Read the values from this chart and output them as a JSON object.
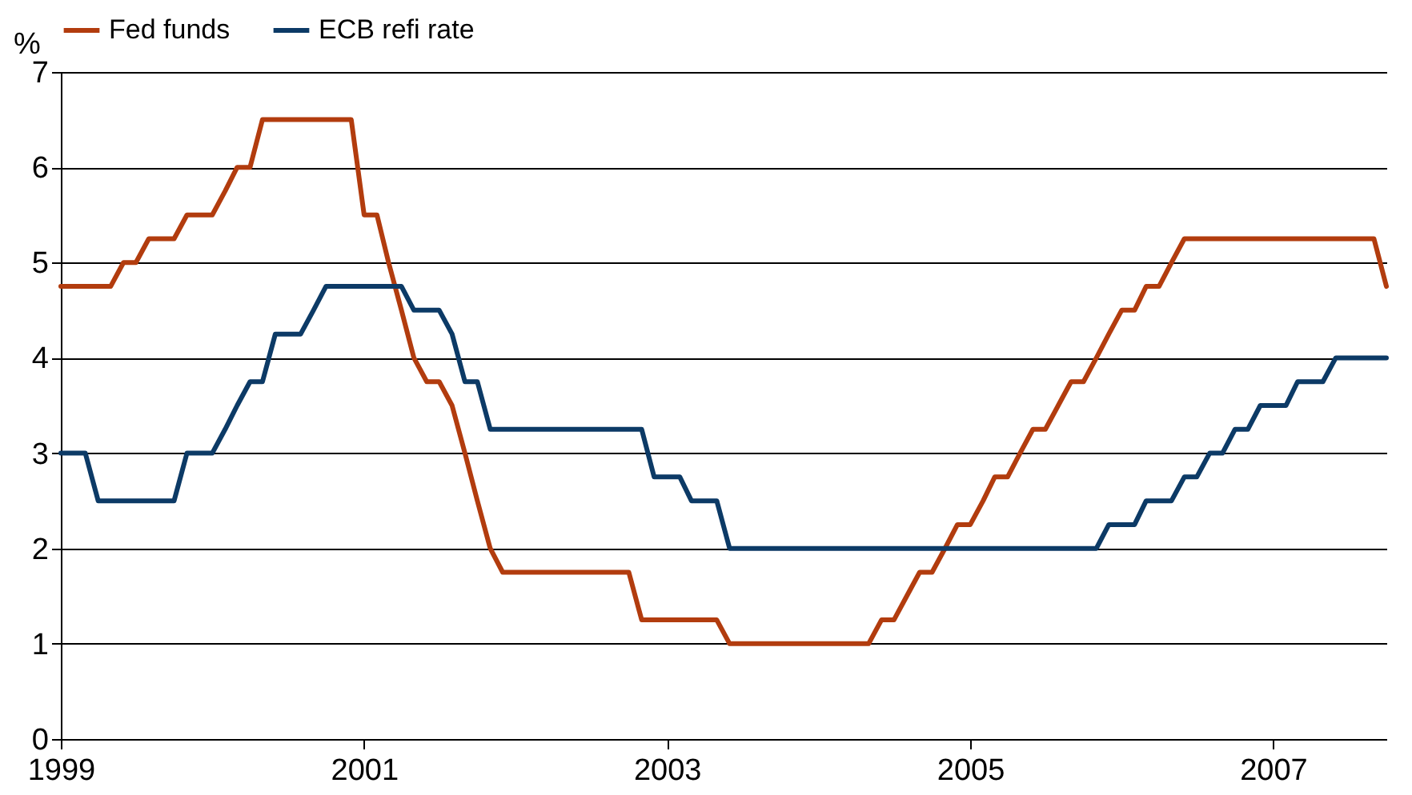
{
  "chart_data": {
    "type": "line",
    "ylabel": "%",
    "xlim": [
      "1999-01",
      "2007-10"
    ],
    "xticks": [
      "1999",
      "2001",
      "2003",
      "2005",
      "2007"
    ],
    "ylim": [
      0,
      7
    ],
    "yticks": [
      0,
      1,
      2,
      3,
      4,
      5,
      6,
      7
    ],
    "grid": "y",
    "legend": "top",
    "marker": "none",
    "line_style": "solid",
    "x": [
      "1999-01",
      "1999-02",
      "1999-03",
      "1999-04",
      "1999-05",
      "1999-06",
      "1999-07",
      "1999-08",
      "1999-09",
      "1999-10",
      "1999-11",
      "1999-12",
      "2000-01",
      "2000-02",
      "2000-03",
      "2000-04",
      "2000-05",
      "2000-06",
      "2000-07",
      "2000-08",
      "2000-09",
      "2000-10",
      "2000-11",
      "2000-12",
      "2001-01",
      "2001-02",
      "2001-03",
      "2001-04",
      "2001-05",
      "2001-06",
      "2001-07",
      "2001-08",
      "2001-09",
      "2001-10",
      "2001-11",
      "2001-12",
      "2002-01",
      "2002-02",
      "2002-03",
      "2002-04",
      "2002-05",
      "2002-06",
      "2002-07",
      "2002-08",
      "2002-09",
      "2002-10",
      "2002-11",
      "2002-12",
      "2003-01",
      "2003-02",
      "2003-03",
      "2003-04",
      "2003-05",
      "2003-06",
      "2003-07",
      "2003-08",
      "2003-09",
      "2003-10",
      "2003-11",
      "2003-12",
      "2004-01",
      "2004-02",
      "2004-03",
      "2004-04",
      "2004-05",
      "2004-06",
      "2004-07",
      "2004-08",
      "2004-09",
      "2004-10",
      "2004-11",
      "2004-12",
      "2005-01",
      "2005-02",
      "2005-03",
      "2005-04",
      "2005-05",
      "2005-06",
      "2005-07",
      "2005-08",
      "2005-09",
      "2005-10",
      "2005-11",
      "2005-12",
      "2006-01",
      "2006-02",
      "2006-03",
      "2006-04",
      "2006-05",
      "2006-06",
      "2006-07",
      "2006-08",
      "2006-09",
      "2006-10",
      "2006-11",
      "2006-12",
      "2007-01",
      "2007-02",
      "2007-03",
      "2007-04",
      "2007-05",
      "2007-06",
      "2007-07",
      "2007-08",
      "2007-09",
      "2007-10"
    ],
    "series": [
      {
        "name": "Fed funds",
        "color": "#b23c0e",
        "values": [
          4.75,
          4.75,
          4.75,
          4.75,
          4.75,
          5,
          5,
          5.25,
          5.25,
          5.25,
          5.5,
          5.5,
          5.5,
          5.75,
          6,
          6,
          6.5,
          6.5,
          6.5,
          6.5,
          6.5,
          6.5,
          6.5,
          6.5,
          5.5,
          5.5,
          5,
          4.5,
          4,
          3.75,
          3.75,
          3.5,
          3,
          2.5,
          2,
          1.75,
          1.75,
          1.75,
          1.75,
          1.75,
          1.75,
          1.75,
          1.75,
          1.75,
          1.75,
          1.75,
          1.25,
          1.25,
          1.25,
          1.25,
          1.25,
          1.25,
          1.25,
          1,
          1,
          1,
          1,
          1,
          1,
          1,
          1,
          1,
          1,
          1,
          1,
          1.25,
          1.25,
          1.5,
          1.75,
          1.75,
          2,
          2.25,
          2.25,
          2.5,
          2.75,
          2.75,
          3,
          3.25,
          3.25,
          3.5,
          3.75,
          3.75,
          4,
          4.25,
          4.5,
          4.5,
          4.75,
          4.75,
          5,
          5.25,
          5.25,
          5.25,
          5.25,
          5.25,
          5.25,
          5.25,
          5.25,
          5.25,
          5.25,
          5.25,
          5.25,
          5.25,
          5.25,
          5.25,
          5.25,
          4.75
        ]
      },
      {
        "name": "ECB refi rate",
        "color": "#0c3a66",
        "values": [
          3,
          3,
          3,
          2.5,
          2.5,
          2.5,
          2.5,
          2.5,
          2.5,
          2.5,
          3,
          3,
          3,
          3.25,
          3.5,
          3.75,
          3.75,
          4.25,
          4.25,
          4.25,
          4.5,
          4.75,
          4.75,
          4.75,
          4.75,
          4.75,
          4.75,
          4.75,
          4.5,
          4.5,
          4.5,
          4.25,
          3.75,
          3.75,
          3.25,
          3.25,
          3.25,
          3.25,
          3.25,
          3.25,
          3.25,
          3.25,
          3.25,
          3.25,
          3.25,
          3.25,
          3.25,
          2.75,
          2.75,
          2.75,
          2.5,
          2.5,
          2.5,
          2,
          2,
          2,
          2,
          2,
          2,
          2,
          2,
          2,
          2,
          2,
          2,
          2,
          2,
          2,
          2,
          2,
          2,
          2,
          2,
          2,
          2,
          2,
          2,
          2,
          2,
          2,
          2,
          2,
          2,
          2.25,
          2.25,
          2.25,
          2.5,
          2.5,
          2.5,
          2.75,
          2.75,
          3,
          3,
          3.25,
          3.25,
          3.5,
          3.5,
          3.5,
          3.75,
          3.75,
          3.75,
          4,
          4,
          4,
          4,
          4
        ]
      }
    ]
  }
}
